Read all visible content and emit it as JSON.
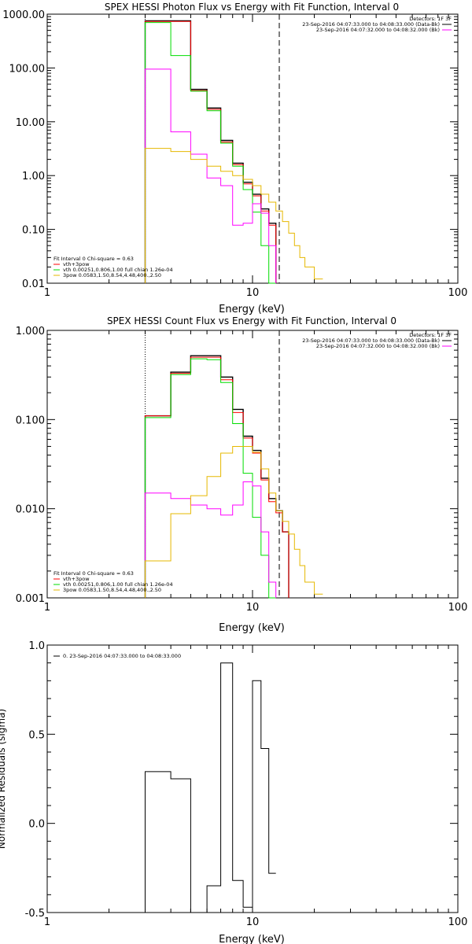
{
  "chart_data": [
    {
      "type": "line",
      "step": true,
      "title": "SPEX HESSI Photon Flux vs Energy with Fit Function, Interval 0",
      "xlabel": "Energy (keV)",
      "ylabel": "",
      "xscale": "log",
      "yscale": "log",
      "xlim": [
        1,
        100
      ],
      "ylim": [
        0.01,
        1000
      ],
      "x_tick_labels": [
        {
          "v": 1,
          "t": "1"
        },
        {
          "v": 10,
          "t": "10"
        },
        {
          "v": 100,
          "t": "100"
        }
      ],
      "y_tick_labels": [
        {
          "v": 0.01,
          "t": "0.01"
        },
        {
          "v": 0.1,
          "t": "0.10"
        },
        {
          "v": 1,
          "t": "1.00"
        },
        {
          "v": 10,
          "t": "10.00"
        },
        {
          "v": 100,
          "t": "100.00"
        },
        {
          "v": 1000,
          "t": "1000.00"
        }
      ],
      "vlines": [
        {
          "x": 3.0,
          "style": "dotted",
          "color": "#000000"
        },
        {
          "x": 13.5,
          "style": "dashed",
          "color": "#000000"
        }
      ],
      "legend_top_right": {
        "header": "Detectors: 1F 3F",
        "entries": [
          {
            "text": "23-Sep-2016 04:07:33.000 to 04:08:33.000 (Data-Bk)",
            "color": "#000000"
          },
          {
            "text": "23-Sep-2016 04:07:32.000 to 04:08:32.000 (Bk)",
            "color": "#ff00ff"
          }
        ]
      },
      "legend_bottom_left": {
        "header": "Fit Interval  0    Chi-square = 0.63",
        "entries": [
          {
            "text": "vth+3pow",
            "color": "#ff0000"
          },
          {
            "text": "vth 0.00251,0.806,1.00  full chian 1.26e-04",
            "color": "#00dd00"
          },
          {
            "text": "3pow 0.0583,1.50,8.54,4.48,400.,2.50",
            "color": "#e6b800"
          }
        ]
      },
      "edges": [
        3,
        4,
        5,
        6,
        7,
        8,
        9,
        10,
        11,
        12,
        13,
        14,
        15,
        16,
        17,
        18,
        20,
        22
      ],
      "series": [
        {
          "color": "#000000",
          "width": 1.4,
          "values": [
            750,
            750,
            40,
            18,
            4.5,
            1.7,
            0.75,
            0.45,
            0.24,
            0.13,
            null,
            null,
            null,
            null,
            null,
            null,
            null
          ]
        },
        {
          "color": "#ff0000",
          "width": 1.0,
          "values": [
            730,
            730,
            38,
            17,
            4.2,
            1.6,
            0.7,
            0.42,
            0.22,
            0.12,
            null,
            null,
            null,
            null,
            null,
            null,
            null
          ]
        },
        {
          "color": "#00dd00",
          "width": 1.0,
          "values": [
            700,
            170,
            37,
            16,
            4.0,
            1.5,
            0.55,
            0.21,
            0.05,
            0.01,
            null,
            null,
            null,
            null,
            null,
            null,
            null
          ]
        },
        {
          "color": "#ff00ff",
          "width": 1.0,
          "values": [
            95,
            6.5,
            2.5,
            0.9,
            0.65,
            0.12,
            0.13,
            0.3,
            0.2,
            0.05,
            null,
            null,
            null,
            null,
            null,
            null,
            null
          ]
        },
        {
          "color": "#e6b800",
          "width": 1.0,
          "values": [
            3.2,
            2.8,
            2.0,
            1.5,
            1.2,
            1.0,
            0.85,
            0.65,
            0.45,
            0.32,
            0.22,
            0.14,
            0.085,
            0.05,
            0.03,
            0.02,
            0.012
          ]
        }
      ]
    },
    {
      "type": "line",
      "step": true,
      "title": "SPEX HESSI Count Flux vs Energy with Fit Function, Interval 0",
      "xlabel": "Energy (keV)",
      "ylabel": "",
      "xscale": "log",
      "yscale": "log",
      "xlim": [
        1,
        100
      ],
      "ylim": [
        0.001,
        1
      ],
      "x_tick_labels": [
        {
          "v": 1,
          "t": "1"
        },
        {
          "v": 10,
          "t": "10"
        },
        {
          "v": 100,
          "t": "100"
        }
      ],
      "y_tick_labels": [
        {
          "v": 0.001,
          "t": "0.001"
        },
        {
          "v": 0.01,
          "t": "0.010"
        },
        {
          "v": 0.1,
          "t": "0.100"
        },
        {
          "v": 1,
          "t": "1.000"
        }
      ],
      "vlines": [
        {
          "x": 3.0,
          "style": "dotted",
          "color": "#000000"
        },
        {
          "x": 13.5,
          "style": "dashed",
          "color": "#000000"
        }
      ],
      "legend_top_right": {
        "header": "Detectors: 1F 3F",
        "entries": [
          {
            "text": "23-Sep-2016 04:07:33.000 to 04:08:33.000 (Data-Bk)",
            "color": "#000000"
          },
          {
            "text": "23-Sep-2016 04:07:32.000 to 04:08:32.000 (Bk)",
            "color": "#ff00ff"
          }
        ]
      },
      "legend_bottom_left": {
        "header": "Fit Interval  0    Chi-square = 0.63",
        "entries": [
          {
            "text": "vth+3pow",
            "color": "#ff0000"
          },
          {
            "text": "vth 0.00251,0.806,1.00  full chian 1.26e-04",
            "color": "#00dd00"
          },
          {
            "text": "3pow 0.0583,1.50,8.54,4.48,400.,2.50",
            "color": "#e6b800"
          }
        ]
      },
      "edges": [
        3,
        4,
        5,
        6,
        7,
        8,
        9,
        10,
        11,
        12,
        13,
        14,
        15,
        16,
        17,
        18,
        20,
        22
      ],
      "series": [
        {
          "color": "#000000",
          "width": 1.4,
          "values": [
            0.11,
            0.34,
            0.52,
            0.52,
            0.3,
            0.13,
            0.065,
            0.045,
            0.022,
            0.013,
            0.0095,
            0.0055,
            null,
            null,
            null,
            null,
            null
          ]
        },
        {
          "color": "#ff0000",
          "width": 1.0,
          "values": [
            0.11,
            0.33,
            0.5,
            0.5,
            0.28,
            0.12,
            0.062,
            0.042,
            0.021,
            0.012,
            0.009,
            0.0055,
            null,
            null,
            null,
            null,
            null
          ]
        },
        {
          "color": "#00dd00",
          "width": 1.0,
          "values": [
            0.105,
            0.32,
            0.48,
            0.47,
            0.26,
            0.09,
            0.025,
            0.008,
            0.003,
            0.001,
            null,
            null,
            null,
            null,
            null,
            null,
            null
          ]
        },
        {
          "color": "#ff00ff",
          "width": 1.0,
          "values": [
            0.015,
            0.013,
            0.011,
            0.01,
            0.0085,
            0.011,
            0.02,
            0.018,
            0.0055,
            0.0015,
            null,
            null,
            null,
            null,
            null,
            null,
            null
          ]
        },
        {
          "color": "#e6b800",
          "width": 1.0,
          "values": [
            0.0026,
            0.0088,
            0.014,
            0.023,
            0.042,
            0.05,
            0.05,
            0.043,
            0.028,
            0.015,
            0.0095,
            0.0072,
            0.0052,
            0.0035,
            0.0023,
            0.0015,
            0.0011
          ]
        }
      ]
    },
    {
      "type": "line",
      "step": true,
      "title": "",
      "xlabel": "Energy (keV)",
      "ylabel": "Normalized Residuals (sigma)",
      "xscale": "log",
      "yscale": "linear",
      "xlim": [
        1,
        100
      ],
      "ylim": [
        -0.5,
        1.0
      ],
      "x_tick_labels": [
        {
          "v": 1,
          "t": "1"
        },
        {
          "v": 10,
          "t": "10"
        },
        {
          "v": 100,
          "t": "100"
        }
      ],
      "y_tick_labels": [
        {
          "v": -0.5,
          "t": "-0.5"
        },
        {
          "v": 0.0,
          "t": "0.0"
        },
        {
          "v": 0.5,
          "t": "0.5"
        },
        {
          "v": 1.0,
          "t": "1.0"
        }
      ],
      "legend_top_left": {
        "entries": [
          {
            "text": "0. 23-Sep-2016 04:07:33.000 to 04:08:33.000",
            "color": "#000000"
          }
        ]
      },
      "edges": [
        3,
        4,
        5,
        6,
        7,
        8,
        9,
        10,
        11,
        12,
        13
      ],
      "series": [
        {
          "color": "#000000",
          "width": 1.0,
          "values": [
            0.29,
            0.25,
            -0.5,
            -0.35,
            0.9,
            -0.32,
            -0.47,
            0.8,
            0.42,
            -0.28
          ]
        }
      ]
    }
  ]
}
